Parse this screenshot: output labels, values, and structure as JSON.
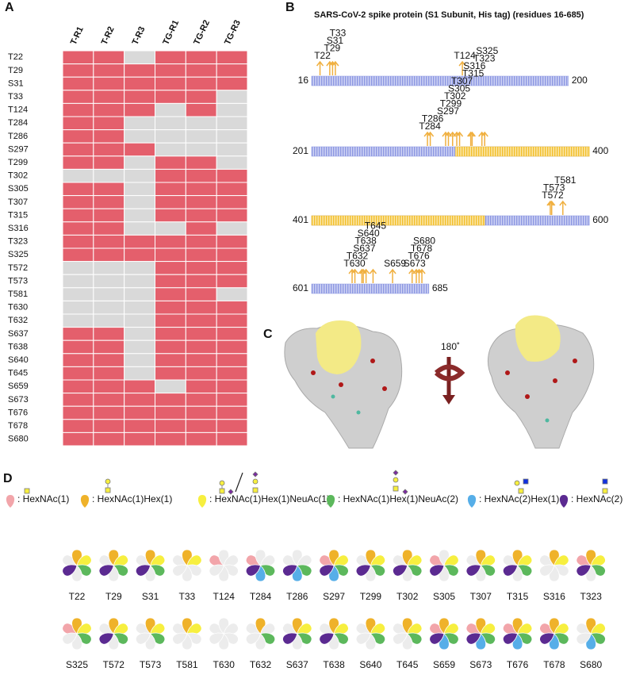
{
  "panels": {
    "a": "A",
    "b": "B",
    "c": "C",
    "d": "D"
  },
  "heatmap": {
    "columns": [
      "T-R1",
      "T-R2",
      "T-R3",
      "TG-R1",
      "TG-R2",
      "TG-R3"
    ],
    "present_color": "#e45f6c",
    "absent_color": "#d9d9d9",
    "rows": [
      {
        "site": "T22",
        "values": [
          1,
          1,
          0,
          1,
          1,
          1
        ]
      },
      {
        "site": "T29",
        "values": [
          1,
          1,
          1,
          1,
          1,
          1
        ]
      },
      {
        "site": "S31",
        "values": [
          1,
          1,
          1,
          1,
          1,
          1
        ]
      },
      {
        "site": "T33",
        "values": [
          1,
          1,
          1,
          1,
          1,
          0
        ]
      },
      {
        "site": "T124",
        "values": [
          1,
          1,
          1,
          0,
          1,
          0
        ]
      },
      {
        "site": "T284",
        "values": [
          1,
          1,
          0,
          0,
          0,
          0
        ]
      },
      {
        "site": "T286",
        "values": [
          1,
          1,
          0,
          0,
          0,
          0
        ]
      },
      {
        "site": "S297",
        "values": [
          1,
          1,
          1,
          0,
          0,
          0
        ]
      },
      {
        "site": "T299",
        "values": [
          1,
          1,
          0,
          1,
          1,
          0
        ]
      },
      {
        "site": "T302",
        "values": [
          0,
          0,
          0,
          1,
          1,
          1
        ]
      },
      {
        "site": "S305",
        "values": [
          1,
          1,
          0,
          1,
          1,
          1
        ]
      },
      {
        "site": "T307",
        "values": [
          1,
          1,
          0,
          1,
          1,
          1
        ]
      },
      {
        "site": "T315",
        "values": [
          1,
          1,
          0,
          1,
          1,
          1
        ]
      },
      {
        "site": "S316",
        "values": [
          1,
          1,
          0,
          0,
          1,
          0
        ]
      },
      {
        "site": "T323",
        "values": [
          1,
          1,
          1,
          1,
          1,
          1
        ]
      },
      {
        "site": "S325",
        "values": [
          1,
          1,
          1,
          1,
          1,
          1
        ]
      },
      {
        "site": "T572",
        "values": [
          0,
          0,
          0,
          1,
          1,
          1
        ]
      },
      {
        "site": "T573",
        "values": [
          0,
          0,
          0,
          1,
          1,
          1
        ]
      },
      {
        "site": "T581",
        "values": [
          0,
          0,
          0,
          1,
          1,
          0
        ]
      },
      {
        "site": "T630",
        "values": [
          0,
          0,
          0,
          1,
          1,
          1
        ]
      },
      {
        "site": "T632",
        "values": [
          0,
          0,
          0,
          1,
          1,
          1
        ]
      },
      {
        "site": "S637",
        "values": [
          1,
          1,
          0,
          1,
          1,
          1
        ]
      },
      {
        "site": "T638",
        "values": [
          1,
          1,
          0,
          1,
          1,
          1
        ]
      },
      {
        "site": "S640",
        "values": [
          1,
          1,
          0,
          1,
          1,
          1
        ]
      },
      {
        "site": "T645",
        "values": [
          1,
          1,
          0,
          1,
          1,
          1
        ]
      },
      {
        "site": "S659",
        "values": [
          1,
          1,
          1,
          0,
          1,
          1
        ]
      },
      {
        "site": "S673",
        "values": [
          1,
          1,
          1,
          1,
          1,
          1
        ]
      },
      {
        "site": "T676",
        "values": [
          1,
          1,
          1,
          1,
          1,
          1
        ]
      },
      {
        "site": "T678",
        "values": [
          1,
          1,
          1,
          1,
          1,
          1
        ]
      },
      {
        "site": "S680",
        "values": [
          1,
          1,
          1,
          1,
          1,
          1
        ]
      }
    ]
  },
  "sequence": {
    "title": "SARS-CoV-2 spike protein (S1 Subunit, His tag) (residues 16-685)",
    "bar_color": "#8d98e2",
    "highlight_color": "#f2bf2e",
    "arrow_color": "#f0b040",
    "highlight": {
      "start": 304,
      "end": 525
    },
    "rows": [
      {
        "start": 16,
        "end": 200,
        "sites": [
          "T22",
          "T29",
          "S31",
          "T33",
          "T124"
        ]
      },
      {
        "start": 201,
        "end": 400,
        "sites": [
          "T284",
          "T286",
          "S297",
          "T299",
          "T302",
          "S305",
          "T307",
          "T315",
          "S316",
          "T323",
          "S325"
        ]
      },
      {
        "start": 401,
        "end": 600,
        "sites": [
          "T572",
          "T573",
          "T581"
        ]
      },
      {
        "start": 601,
        "end": 685,
        "sites": [
          "T630",
          "T632",
          "S637",
          "T638",
          "S640",
          "T645",
          "S659",
          "S673",
          "T676",
          "T678",
          "S680"
        ]
      }
    ]
  },
  "structure": {
    "rotation_label": "180˚"
  },
  "glycoforms": {
    "absent_color": "#ececec",
    "types": [
      {
        "label": ": HexNAc(1)",
        "color": "#f2a5aa"
      },
      {
        "label": ": HexNAc(1)Hex(1)",
        "color": "#efb22a"
      },
      {
        "label": ": HexNAc(1)Hex(1)NeuAc(1)",
        "color": "#f7ef3f"
      },
      {
        "label": ": HexNAc(1)Hex(1)NeuAc(2)",
        "color": "#5cb85c"
      },
      {
        "label": ": HexNAc(2)Hex(1)",
        "color": "#56aee8"
      },
      {
        "label": ": HexNAc(2)",
        "color": "#5b2a91"
      }
    ],
    "sites": [
      {
        "site": "T22",
        "present": [
          0,
          1,
          1,
          1,
          0,
          1
        ]
      },
      {
        "site": "T29",
        "present": [
          0,
          1,
          1,
          1,
          0,
          1
        ]
      },
      {
        "site": "S31",
        "present": [
          0,
          1,
          1,
          1,
          0,
          1
        ]
      },
      {
        "site": "T33",
        "present": [
          0,
          1,
          1,
          0,
          0,
          0
        ]
      },
      {
        "site": "T124",
        "present": [
          1,
          0,
          0,
          0,
          0,
          0
        ]
      },
      {
        "site": "T284",
        "present": [
          1,
          0,
          0,
          1,
          1,
          1
        ]
      },
      {
        "site": "T286",
        "present": [
          0,
          0,
          0,
          1,
          1,
          1
        ]
      },
      {
        "site": "S297",
        "present": [
          1,
          1,
          1,
          1,
          1,
          1
        ]
      },
      {
        "site": "T299",
        "present": [
          0,
          1,
          1,
          1,
          0,
          1
        ]
      },
      {
        "site": "T302",
        "present": [
          0,
          1,
          1,
          1,
          0,
          1
        ]
      },
      {
        "site": "S305",
        "present": [
          1,
          0,
          1,
          1,
          0,
          1
        ]
      },
      {
        "site": "T307",
        "present": [
          0,
          1,
          1,
          1,
          0,
          1
        ]
      },
      {
        "site": "T315",
        "present": [
          0,
          1,
          1,
          1,
          0,
          1
        ]
      },
      {
        "site": "S316",
        "present": [
          0,
          1,
          1,
          0,
          0,
          0
        ]
      },
      {
        "site": "T323",
        "present": [
          1,
          1,
          1,
          1,
          0,
          1
        ]
      },
      {
        "site": "S325",
        "present": [
          1,
          1,
          1,
          1,
          0,
          0
        ]
      },
      {
        "site": "T572",
        "present": [
          0,
          1,
          1,
          1,
          0,
          1
        ]
      },
      {
        "site": "T573",
        "present": [
          0,
          1,
          1,
          1,
          0,
          0
        ]
      },
      {
        "site": "T581",
        "present": [
          0,
          1,
          1,
          0,
          0,
          0
        ]
      },
      {
        "site": "T630",
        "present": [
          0,
          0,
          0,
          0,
          0,
          0
        ]
      },
      {
        "site": "T632",
        "present": [
          0,
          1,
          0,
          1,
          0,
          0
        ]
      },
      {
        "site": "S637",
        "present": [
          0,
          1,
          1,
          1,
          0,
          1
        ]
      },
      {
        "site": "T638",
        "present": [
          0,
          1,
          1,
          1,
          0,
          1
        ]
      },
      {
        "site": "S640",
        "present": [
          0,
          1,
          1,
          1,
          0,
          0
        ]
      },
      {
        "site": "T645",
        "present": [
          0,
          1,
          1,
          1,
          0,
          0
        ]
      },
      {
        "site": "S659",
        "present": [
          1,
          1,
          1,
          1,
          1,
          1
        ]
      },
      {
        "site": "S673",
        "present": [
          1,
          1,
          1,
          1,
          1,
          1
        ]
      },
      {
        "site": "T676",
        "present": [
          1,
          1,
          1,
          1,
          1,
          1
        ]
      },
      {
        "site": "T678",
        "present": [
          1,
          1,
          1,
          1,
          1,
          1
        ]
      },
      {
        "site": "S680",
        "present": [
          0,
          1,
          1,
          1,
          1,
          0
        ]
      }
    ]
  }
}
